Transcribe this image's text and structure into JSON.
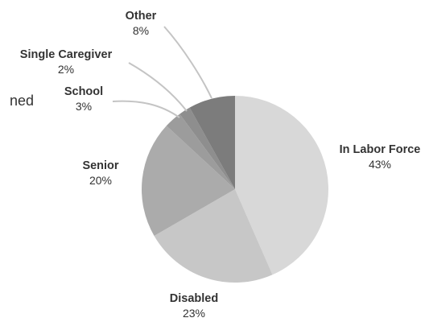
{
  "clipped_text": "ned",
  "chart_data": {
    "type": "pie",
    "slices": [
      {
        "label": "In Labor Force",
        "value": 43,
        "display": "43%",
        "color": "#d8d8d8"
      },
      {
        "label": "Disabled",
        "value": 23,
        "display": "23%",
        "color": "#c7c7c7"
      },
      {
        "label": "Senior",
        "value": 20,
        "display": "20%",
        "color": "#ababab"
      },
      {
        "label": "School",
        "value": 3,
        "display": "3%",
        "color": "#9c9c9c"
      },
      {
        "label": "Single Caregiver",
        "value": 2,
        "display": "2%",
        "color": "#8e8e8e"
      },
      {
        "label": "Other",
        "value": 8,
        "display": "8%",
        "color": "#7c7c7c"
      }
    ],
    "leader_color": "#c4c4c4"
  }
}
